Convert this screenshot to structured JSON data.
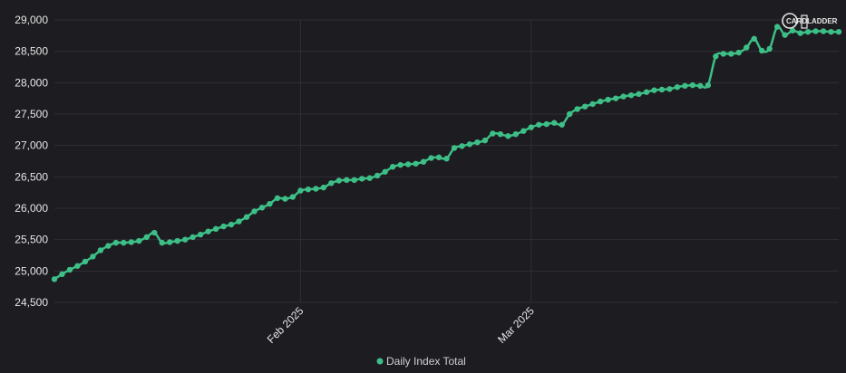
{
  "chart_data": {
    "type": "line",
    "title": "",
    "xlabel": "",
    "ylabel": "",
    "ylim": [
      24500,
      29000
    ],
    "yticks": [
      "24,500",
      "25,000",
      "25,500",
      "26,000",
      "26,500",
      "27,000",
      "27,500",
      "28,000",
      "28,500",
      "29,000"
    ],
    "xticks": [
      {
        "label": "Feb 2025",
        "index": 32
      },
      {
        "label": "Mar 2025",
        "index": 62
      }
    ],
    "grid": true,
    "legend_position": "bottom-center",
    "series": [
      {
        "name": "Daily Index Total",
        "color": "#3dbf87",
        "values": [
          24870,
          24950,
          25020,
          25080,
          25150,
          25230,
          25330,
          25400,
          25450,
          25450,
          25460,
          25480,
          25540,
          25610,
          25450,
          25460,
          25480,
          25500,
          25540,
          25580,
          25630,
          25670,
          25710,
          25740,
          25790,
          25860,
          25950,
          26010,
          26070,
          26160,
          26150,
          26180,
          26280,
          26300,
          26310,
          26330,
          26400,
          26440,
          26450,
          26450,
          26470,
          26480,
          26520,
          26580,
          26660,
          26690,
          26700,
          26710,
          26740,
          26800,
          26810,
          26790,
          26960,
          26990,
          27020,
          27050,
          27080,
          27190,
          27180,
          27150,
          27180,
          27230,
          27290,
          27330,
          27340,
          27360,
          27330,
          27500,
          27580,
          27620,
          27660,
          27700,
          27730,
          27750,
          27780,
          27800,
          27820,
          27850,
          27880,
          27890,
          27900,
          27930,
          27950,
          27960,
          27950,
          27960,
          28420,
          28460,
          28460,
          28480,
          28560,
          28700,
          28510,
          28540,
          28890,
          28760,
          28830,
          28790,
          28810,
          28820,
          28820,
          28810,
          28810
        ]
      }
    ],
    "logo": {
      "text": "CARDLADDER"
    }
  }
}
